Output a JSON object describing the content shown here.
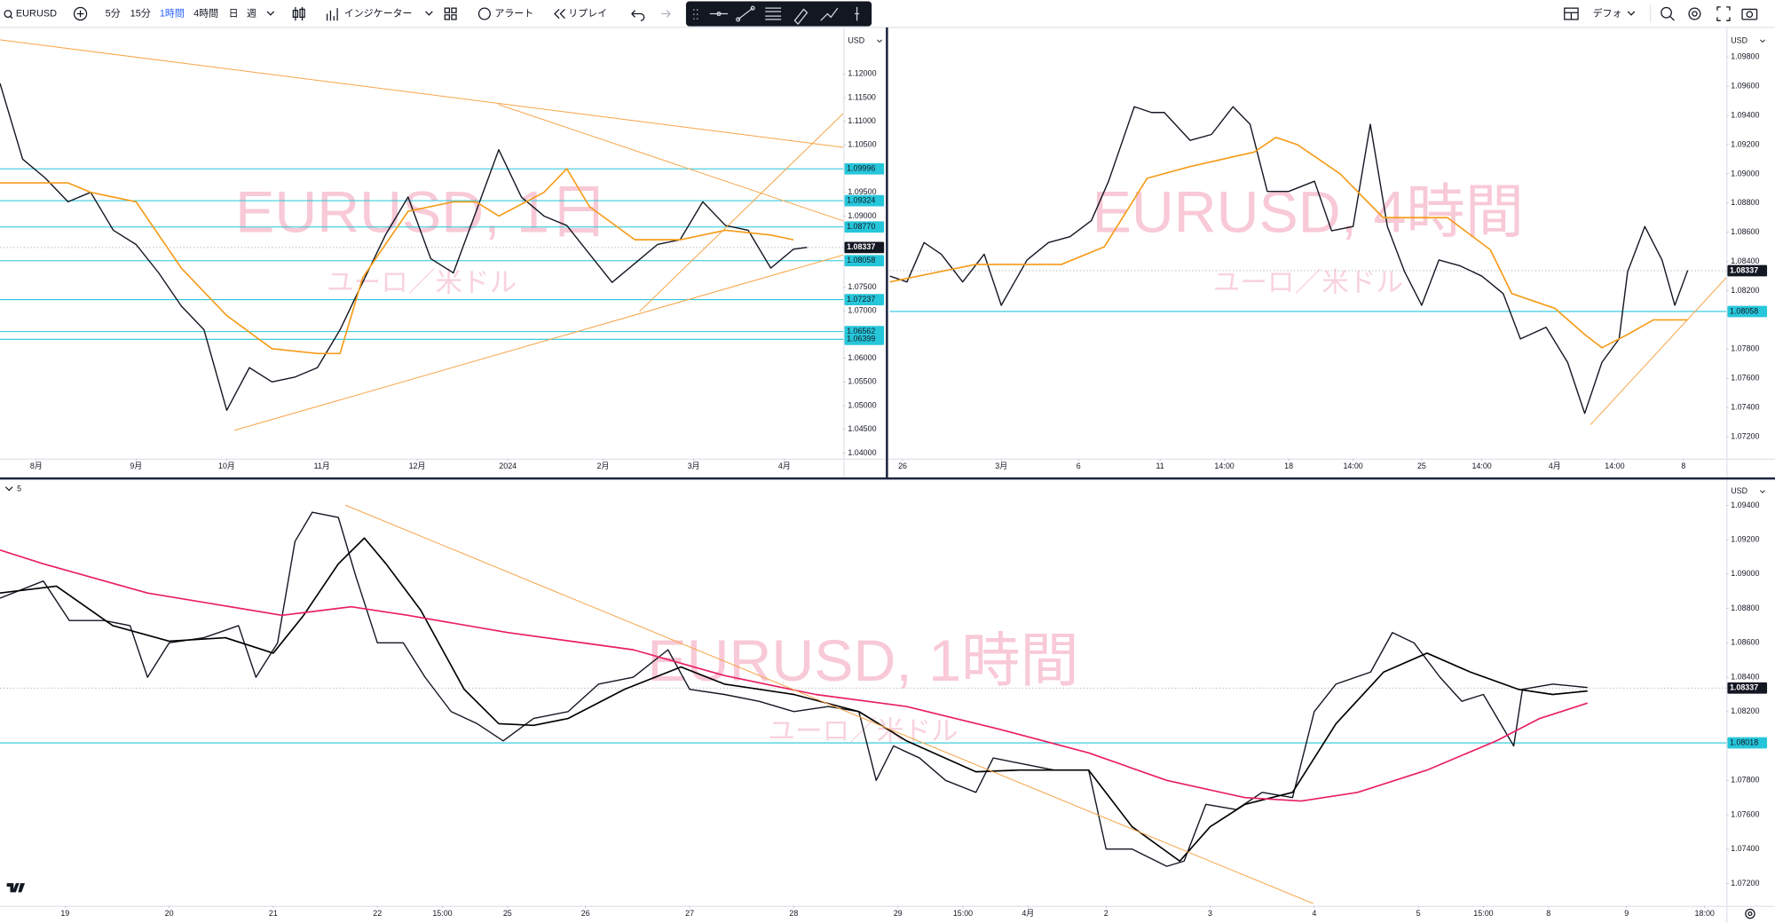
{
  "toolbar": {
    "symbol": "EURUSD",
    "intervals": [
      "5分",
      "15分",
      "1時間",
      "4時間",
      "日",
      "週"
    ],
    "active_interval": 2,
    "active_color": "#2962ff",
    "indicators": "インジケーター",
    "alert": "アラート",
    "replay": "リプレイ",
    "layout": "デフォ"
  },
  "chart_data": [
    {
      "type": "line",
      "title": "EURUSD, 1日",
      "subtitle": "ユーロ／米ドル",
      "currency": "USD",
      "ylim": [
        1.0388,
        1.1291
      ],
      "yticks": [
        {
          "value": 1.12,
          "label": "1.12000"
        },
        {
          "value": 1.115,
          "label": "1.11500"
        },
        {
          "value": 1.11,
          "label": "1.11000"
        },
        {
          "value": 1.105,
          "label": "1.10500"
        },
        {
          "value": 1.095,
          "label": "1.09500"
        },
        {
          "value": 1.09,
          "label": "1.09000"
        },
        {
          "value": 1.075,
          "label": "1.07500"
        },
        {
          "value": 1.07,
          "label": "1.07000"
        },
        {
          "value": 1.06,
          "label": "1.06000"
        },
        {
          "value": 1.055,
          "label": "1.05500"
        },
        {
          "value": 1.05,
          "label": "1.05000"
        },
        {
          "value": 1.045,
          "label": "1.04500"
        },
        {
          "value": 1.04,
          "label": "1.04000"
        }
      ],
      "xlim": [
        0,
        186
      ],
      "xticks": [
        {
          "value": 8,
          "label": "8月"
        },
        {
          "value": 30,
          "label": "9月"
        },
        {
          "value": 50,
          "label": "10月"
        },
        {
          "value": 71,
          "label": "11月"
        },
        {
          "value": 92,
          "label": "12月"
        },
        {
          "value": 112,
          "label": "2024"
        },
        {
          "value": 133,
          "label": "2月"
        },
        {
          "value": 153,
          "label": "3月"
        },
        {
          "value": 173,
          "label": "4月"
        }
      ],
      "series": [
        {
          "color": "#131722",
          "x": [
            0,
            5,
            10,
            15,
            20,
            25,
            30,
            35,
            40,
            45,
            50,
            55,
            60,
            65,
            70,
            75,
            80,
            85,
            90,
            95,
            100,
            105,
            110,
            115,
            120,
            125,
            130,
            135,
            140,
            145,
            150,
            155,
            160,
            165,
            170,
            175,
            178
          ],
          "values": [
            1.118,
            1.102,
            1.098,
            1.093,
            1.095,
            1.087,
            1.084,
            1.078,
            1.071,
            1.066,
            1.049,
            1.058,
            1.055,
            1.056,
            1.058,
            1.066,
            1.076,
            1.086,
            1.094,
            1.081,
            1.078,
            1.091,
            1.104,
            1.094,
            1.09,
            1.088,
            1.082,
            1.076,
            1.08,
            1.084,
            1.085,
            1.093,
            1.088,
            1.087,
            1.079,
            1.083,
            1.0834
          ]
        },
        {
          "color": "#f59c1a",
          "x": [
            0,
            15,
            20,
            30,
            40,
            50,
            60,
            70,
            75,
            80,
            90,
            100,
            105,
            110,
            120,
            125,
            130,
            140,
            150,
            160,
            170,
            175
          ],
          "values": [
            1.097,
            1.097,
            1.095,
            1.093,
            1.079,
            1.069,
            1.062,
            1.061,
            1.061,
            1.077,
            1.091,
            1.093,
            1.093,
            1.09,
            1.095,
            1.1,
            1.092,
            1.085,
            1.085,
            1.087,
            1.086,
            1.085
          ]
        }
      ],
      "levels": [
        1.09996,
        1.09324,
        {
          "value": 1.0877,
          "label": "1.08770"
        },
        1.08058,
        1.07237,
        1.06562,
        1.06399
      ],
      "level_color": "#26c6da",
      "current_price": 1.08337
    },
    {
      "type": "line",
      "title": "EURUSD, 4時間",
      "subtitle": "ユーロ／米ドル",
      "currency": "USD",
      "ylim": [
        1.0705,
        1.0998
      ],
      "yticks": [
        {
          "value": 1.098,
          "label": "1.09800"
        },
        {
          "value": 1.096,
          "label": "1.09600"
        },
        {
          "value": 1.094,
          "label": "1.09400"
        },
        {
          "value": 1.092,
          "label": "1.09200"
        },
        {
          "value": 1.09,
          "label": "1.09000"
        },
        {
          "value": 1.088,
          "label": "1.08800"
        },
        {
          "value": 1.086,
          "label": "1.08600"
        },
        {
          "value": 1.084,
          "label": "1.08400"
        },
        {
          "value": 1.082,
          "label": "1.08200"
        },
        {
          "value": 1.078,
          "label": "1.07800"
        },
        {
          "value": 1.076,
          "label": "1.07600"
        },
        {
          "value": 1.074,
          "label": "1.07400"
        },
        {
          "value": 1.072,
          "label": "1.07200"
        }
      ],
      "xlim": [
        0,
        195
      ],
      "xticks": [
        {
          "value": 3,
          "label": "26"
        },
        {
          "value": 26,
          "label": "3月"
        },
        {
          "value": 44,
          "label": "6"
        },
        {
          "value": 63,
          "label": "11"
        },
        {
          "value": 78,
          "label": "14:00"
        },
        {
          "value": 93,
          "label": "18"
        },
        {
          "value": 108,
          "label": "14:00"
        },
        {
          "value": 124,
          "label": "25"
        },
        {
          "value": 138,
          "label": "14:00"
        },
        {
          "value": 155,
          "label": "4月"
        },
        {
          "value": 169,
          "label": "14:00"
        },
        {
          "value": 185,
          "label": "8"
        }
      ],
      "series": [
        {
          "color": "#131722",
          "x": [
            0,
            4,
            8,
            12,
            17,
            22,
            26,
            32,
            37,
            42,
            47,
            51,
            57,
            61,
            64,
            70,
            75,
            80,
            84,
            88,
            93,
            99,
            103,
            108,
            112,
            116,
            120,
            124,
            128,
            133,
            138,
            143,
            147,
            153,
            158,
            162,
            166,
            170,
            172,
            176,
            180,
            183,
            186
          ],
          "values": [
            1.083,
            1.0826,
            1.0853,
            1.0845,
            1.0826,
            1.0845,
            1.081,
            1.0841,
            1.0853,
            1.0857,
            1.0868,
            1.0895,
            1.0946,
            1.0942,
            1.0942,
            1.0923,
            1.0927,
            1.0946,
            1.0934,
            1.0888,
            1.0888,
            1.0895,
            1.0861,
            1.0864,
            1.0934,
            1.0864,
            1.0833,
            1.081,
            1.0841,
            1.0837,
            1.083,
            1.0818,
            1.0787,
            1.0795,
            1.0771,
            1.0736,
            1.0771,
            1.0787,
            1.0833,
            1.0864,
            1.0841,
            1.081,
            1.0834
          ]
        },
        {
          "color": "#f59c1a",
          "x": [
            0,
            20,
            40,
            50,
            60,
            70,
            85,
            90,
            95,
            100,
            105,
            110,
            115,
            130,
            140,
            145,
            155,
            162,
            166,
            172,
            178,
            186
          ],
          "values": [
            1.0826,
            1.0838,
            1.0838,
            1.085,
            1.0897,
            1.0905,
            1.0915,
            1.0925,
            1.092,
            1.091,
            1.09,
            1.0885,
            1.087,
            1.087,
            1.0848,
            1.0818,
            1.0808,
            1.079,
            1.0781,
            1.079,
            1.08,
            1.08
          ]
        }
      ],
      "levels": [
        1.08058
      ],
      "level_color": "#26c6da",
      "current_price": 1.08337
    },
    {
      "type": "line",
      "title": "EURUSD, 1時間",
      "subtitle": "ユーロ／米ドル",
      "currency": "USD",
      "pane_label": "5",
      "ylim": [
        1.0707,
        1.0954
      ],
      "yticks": [
        {
          "value": 1.094,
          "label": "1.09400"
        },
        {
          "value": 1.092,
          "label": "1.09200"
        },
        {
          "value": 1.09,
          "label": "1.09000"
        },
        {
          "value": 1.088,
          "label": "1.08800"
        },
        {
          "value": 1.086,
          "label": "1.08600"
        },
        {
          "value": 1.084,
          "label": "1.08400"
        },
        {
          "value": 1.082,
          "label": "1.08200"
        },
        {
          "value": 1.078,
          "label": "1.07800"
        },
        {
          "value": 1.076,
          "label": "1.07600"
        },
        {
          "value": 1.074,
          "label": "1.07400"
        },
        {
          "value": 1.072,
          "label": "1.07200"
        }
      ],
      "xlim": [
        0,
        398
      ],
      "xticks": [
        {
          "value": 15,
          "label": "19"
        },
        {
          "value": 39,
          "label": "20"
        },
        {
          "value": 63,
          "label": "21"
        },
        {
          "value": 87,
          "label": "22"
        },
        {
          "value": 102,
          "label": "15:00"
        },
        {
          "value": 117,
          "label": "25"
        },
        {
          "value": 135,
          "label": "26"
        },
        {
          "value": 159,
          "label": "27"
        },
        {
          "value": 183,
          "label": "28"
        },
        {
          "value": 207,
          "label": "29"
        },
        {
          "value": 222,
          "label": "15:00"
        },
        {
          "value": 237,
          "label": "4月"
        },
        {
          "value": 255,
          "label": "2"
        },
        {
          "value": 279,
          "label": "3"
        },
        {
          "value": 303,
          "label": "4"
        },
        {
          "value": 327,
          "label": "5"
        },
        {
          "value": 342,
          "label": "15:00"
        },
        {
          "value": 357,
          "label": "8"
        },
        {
          "value": 375,
          "label": "9"
        },
        {
          "value": 393,
          "label": "18:00"
        }
      ],
      "series": [
        {
          "color": "#131722",
          "x": [
            0,
            10,
            16,
            24,
            30,
            34,
            39,
            47,
            55,
            59,
            64,
            68,
            72,
            78,
            82,
            87,
            93,
            98,
            104,
            110,
            116,
            123,
            131,
            138,
            146,
            154,
            159,
            167,
            175,
            183,
            191,
            198,
            202,
            206,
            212,
            218,
            225,
            229,
            235,
            243,
            251,
            255,
            261,
            269,
            273,
            278,
            285,
            291,
            298,
            303,
            308,
            316,
            321,
            326,
            332,
            337,
            342,
            349,
            351,
            358,
            366
          ],
          "values": [
            1.0886,
            1.0896,
            1.0873,
            1.0873,
            1.087,
            1.084,
            1.086,
            1.0863,
            1.087,
            1.084,
            1.086,
            1.0919,
            1.0936,
            1.0933,
            1.0899,
            1.086,
            1.086,
            1.084,
            1.082,
            1.0813,
            1.0803,
            1.0816,
            1.082,
            1.0836,
            1.084,
            1.0856,
            1.0833,
            1.083,
            1.0826,
            1.082,
            1.0823,
            1.082,
            1.078,
            1.08,
            1.0793,
            1.078,
            1.0773,
            1.0793,
            1.079,
            1.0786,
            1.0786,
            1.074,
            1.074,
            1.073,
            1.0733,
            1.0766,
            1.0763,
            1.0773,
            1.077,
            1.082,
            1.0836,
            1.0843,
            1.0866,
            1.086,
            1.084,
            1.0826,
            1.083,
            1.08,
            1.0833,
            1.0836,
            1.0834
          ]
        },
        {
          "color": "#000000",
          "x": [
            0,
            13,
            26,
            39,
            52,
            63,
            70,
            78,
            84,
            89,
            97,
            107,
            115,
            123,
            131,
            144,
            157,
            167,
            183,
            198,
            209,
            225,
            235,
            251,
            261,
            272,
            279,
            287,
            298,
            308,
            319,
            329,
            339,
            350,
            358,
            366
          ],
          "values": [
            1.0889,
            1.0893,
            1.087,
            1.0861,
            1.0863,
            1.0854,
            1.0876,
            1.0906,
            1.0921,
            1.0906,
            1.0879,
            1.0833,
            1.0813,
            1.0812,
            1.0816,
            1.0833,
            1.0846,
            1.0836,
            1.083,
            1.082,
            1.0803,
            1.0785,
            1.0786,
            1.0786,
            1.0753,
            1.0733,
            1.0753,
            1.0766,
            1.0773,
            1.0813,
            1.0843,
            1.0854,
            1.0843,
            1.0833,
            1.083,
            1.0832
          ]
        },
        {
          "color": "#e91e63",
          "x": [
            0,
            10,
            34,
            65,
            81,
            94,
            117,
            146,
            167,
            188,
            209,
            230,
            251,
            269,
            287,
            300,
            313,
            329,
            345,
            355,
            366
          ],
          "values": [
            1.0914,
            1.0906,
            1.0889,
            1.0876,
            1.0881,
            1.0876,
            1.0866,
            1.0856,
            1.0841,
            1.083,
            1.0823,
            1.081,
            1.0796,
            1.078,
            1.077,
            1.0768,
            1.0773,
            1.0786,
            1.0803,
            1.0816,
            1.0825
          ]
        }
      ],
      "levels": [
        1.08018
      ],
      "level_color": "#26c6da",
      "current_price": 1.08337
    }
  ]
}
